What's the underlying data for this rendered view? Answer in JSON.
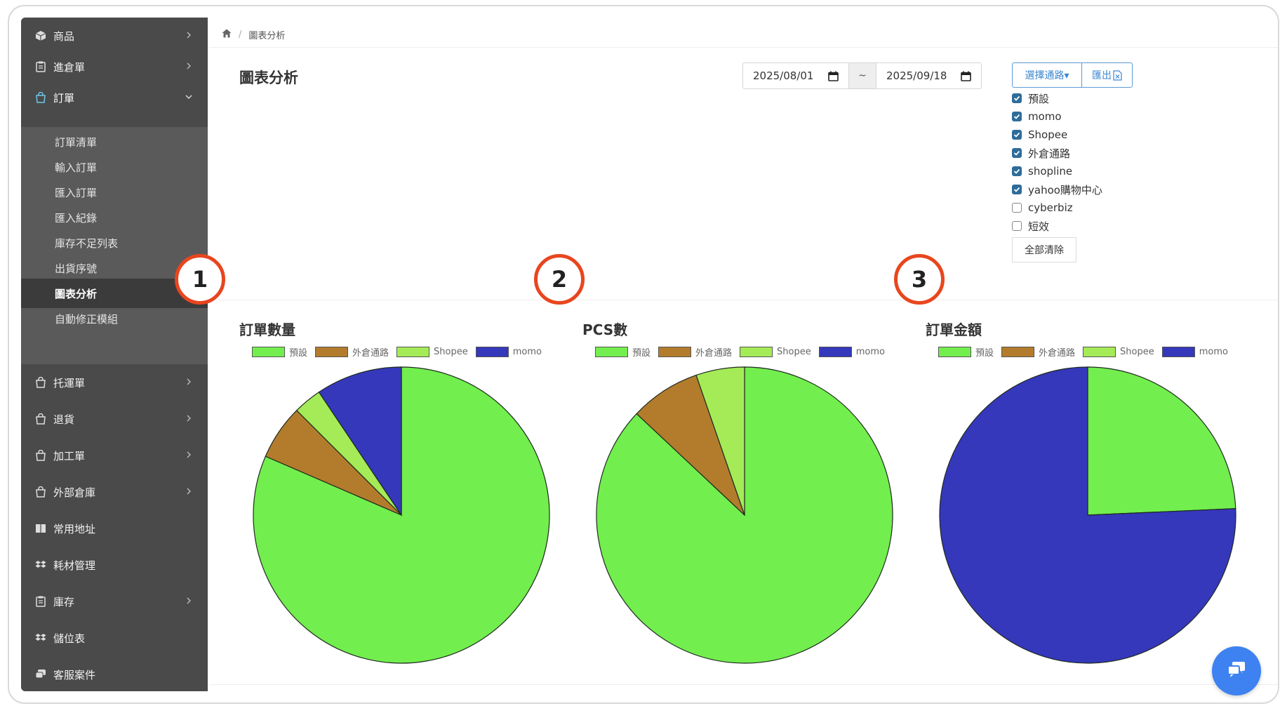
{
  "sidebar": {
    "items": [
      {
        "label": "商品",
        "icon": "cube-icon"
      },
      {
        "label": "進倉單",
        "icon": "clipboard-icon"
      },
      {
        "label": "訂單",
        "icon": "bag-icon"
      },
      {
        "label": "托運單",
        "icon": "bag-icon"
      },
      {
        "label": "退貨",
        "icon": "bag-icon"
      },
      {
        "label": "加工單",
        "icon": "bag-icon"
      },
      {
        "label": "外部倉庫",
        "icon": "bag-icon"
      },
      {
        "label": "常用地址",
        "icon": "book-icon"
      },
      {
        "label": "耗材管理",
        "icon": "dropbox-icon"
      },
      {
        "label": "庫存",
        "icon": "clipboard-icon"
      },
      {
        "label": "儲位表",
        "icon": "dropbox-icon"
      },
      {
        "label": "客服案件",
        "icon": "chat-bubbles-icon"
      }
    ],
    "order_sub": [
      "訂單清單",
      "輸入訂單",
      "匯入訂單",
      "匯入紀錄",
      "庫存不足列表",
      "出貨序號",
      "圖表分析",
      "自動修正模組"
    ]
  },
  "breadcrumb": {
    "current": "圖表分析"
  },
  "page": {
    "title": "圖表分析"
  },
  "filters": {
    "date_from": "2025/08/01",
    "date_sep": "~",
    "date_to": "2025/09/18",
    "select_channel_label": "選擇通路▾",
    "export_label": "匯出",
    "clear_all_label": "全部清除",
    "channels": [
      {
        "label": "預設",
        "checked": true
      },
      {
        "label": "momo",
        "checked": true
      },
      {
        "label": "Shopee",
        "checked": true
      },
      {
        "label": "外倉通路",
        "checked": true
      },
      {
        "label": "shopline",
        "checked": true
      },
      {
        "label": "yahoo購物中心",
        "checked": true
      },
      {
        "label": "cyberbiz",
        "checked": false
      },
      {
        "label": "短效",
        "checked": false
      }
    ]
  },
  "callouts": [
    "1",
    "2",
    "3"
  ],
  "colors": {
    "default": "#72ee4e",
    "external": "#b27c2c",
    "shopee": "#a4eb57",
    "momo": "#3538bb",
    "accent": "#3a86d0"
  },
  "chart_data": [
    {
      "type": "pie",
      "title": "訂單數量",
      "legend": [
        "預設",
        "外倉通路",
        "Shopee",
        "momo"
      ],
      "values": [
        81.5,
        6.0,
        3.1,
        9.4
      ]
    },
    {
      "type": "pie",
      "title": "PCS數",
      "legend": [
        "預設",
        "外倉通路",
        "Shopee",
        "momo"
      ],
      "values": [
        87.0,
        7.7,
        5.3,
        0
      ]
    },
    {
      "type": "pie",
      "title": "訂單金額",
      "legend": [
        "預設",
        "外倉通路",
        "Shopee",
        "momo"
      ],
      "values": [
        24.3,
        0,
        0,
        75.7
      ]
    }
  ]
}
